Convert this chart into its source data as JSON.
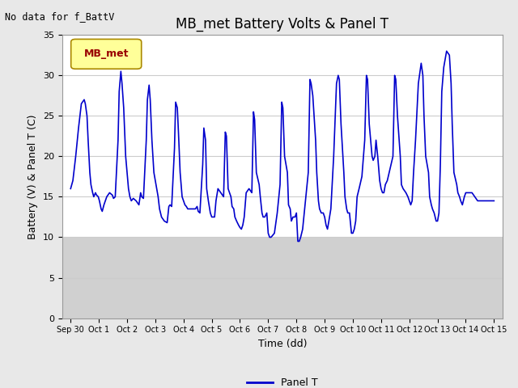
{
  "title": "MB_met Battery Volts & Panel T",
  "no_data_text": "No data for f_BattV",
  "xlabel": "Time (dd)",
  "ylabel": "Battery (V) & Panel T (C)",
  "ylim": [
    0,
    35
  ],
  "yticks": [
    0,
    5,
    10,
    15,
    20,
    25,
    30,
    35
  ],
  "xlim": [
    -0.3,
    15.3
  ],
  "xtick_labels": [
    "Sep 30",
    "Oct 1",
    "Oct 2",
    "Oct 3",
    "Oct 4",
    "Oct 5",
    "Oct 6",
    "Oct 7",
    "Oct 8",
    "Oct 9",
    "Oct 10",
    "Oct 11",
    "Oct 12",
    "Oct 13",
    "Oct 14",
    "Oct 15"
  ],
  "xtick_positions": [
    0,
    1,
    2,
    3,
    4,
    5,
    6,
    7,
    8,
    9,
    10,
    11,
    12,
    13,
    14,
    15
  ],
  "line_color": "#0000cc",
  "line_width": 1.2,
  "legend_label": "Panel T",
  "legend_box_facecolor": "#ffff99",
  "legend_box_edgecolor": "#aa8800",
  "legend_text": "MB_met",
  "legend_text_color": "#990000",
  "fig_facecolor": "#e8e8e8",
  "plot_facecolor": "#ffffff",
  "band_color": "#d0d0d0",
  "title_fontsize": 12,
  "label_fontsize": 9,
  "tick_fontsize": 8,
  "x_data": [
    0.0,
    0.08,
    0.18,
    0.28,
    0.38,
    0.48,
    0.52,
    0.58,
    0.62,
    0.68,
    0.72,
    0.78,
    0.82,
    0.88,
    0.92,
    0.98,
    1.02,
    1.08,
    1.12,
    1.18,
    1.28,
    1.38,
    1.48,
    1.52,
    1.58,
    1.68,
    1.72,
    1.78,
    1.82,
    1.88,
    1.95,
    2.0,
    2.05,
    2.1,
    2.15,
    2.22,
    2.32,
    2.42,
    2.48,
    2.52,
    2.58,
    2.68,
    2.72,
    2.78,
    2.82,
    2.88,
    2.95,
    3.0,
    3.05,
    3.1,
    3.15,
    3.22,
    3.32,
    3.42,
    3.48,
    3.52,
    3.58,
    3.68,
    3.72,
    3.78,
    3.82,
    3.88,
    3.95,
    4.0,
    4.05,
    4.1,
    4.15,
    4.22,
    4.32,
    4.42,
    4.48,
    4.52,
    4.58,
    4.68,
    4.72,
    4.78,
    4.82,
    4.88,
    4.95,
    5.0,
    5.05,
    5.1,
    5.15,
    5.22,
    5.32,
    5.42,
    5.48,
    5.52,
    5.58,
    5.68,
    5.72,
    5.78,
    5.82,
    5.88,
    5.95,
    6.0,
    6.05,
    6.1,
    6.15,
    6.22,
    6.32,
    6.42,
    6.48,
    6.52,
    6.58,
    6.68,
    6.72,
    6.78,
    6.82,
    6.88,
    6.95,
    7.0,
    7.05,
    7.1,
    7.15,
    7.22,
    7.32,
    7.42,
    7.48,
    7.52,
    7.58,
    7.68,
    7.72,
    7.78,
    7.82,
    7.88,
    7.95,
    8.0,
    8.05,
    8.1,
    8.15,
    8.22,
    8.32,
    8.42,
    8.48,
    8.52,
    8.58,
    8.68,
    8.72,
    8.78,
    8.82,
    8.88,
    8.95,
    9.0,
    9.05,
    9.1,
    9.15,
    9.22,
    9.32,
    9.42,
    9.48,
    9.52,
    9.58,
    9.68,
    9.72,
    9.78,
    9.82,
    9.88,
    9.95,
    10.0,
    10.05,
    10.1,
    10.15,
    10.22,
    10.32,
    10.42,
    10.48,
    10.52,
    10.58,
    10.68,
    10.72,
    10.78,
    10.82,
    10.88,
    10.95,
    11.0,
    11.05,
    11.1,
    11.15,
    11.22,
    11.32,
    11.42,
    11.48,
    11.52,
    11.58,
    11.68,
    11.72,
    11.78,
    11.82,
    11.88,
    11.95,
    12.0,
    12.05,
    12.1,
    12.15,
    12.22,
    12.32,
    12.42,
    12.48,
    12.52,
    12.58,
    12.68,
    12.72,
    12.78,
    12.82,
    12.88,
    12.95,
    13.0,
    13.05,
    13.1,
    13.15,
    13.22,
    13.32,
    13.42,
    13.48,
    13.52,
    13.58,
    13.68,
    13.72,
    13.78,
    13.82,
    13.88,
    13.95,
    14.0,
    14.05,
    14.1,
    14.15,
    14.22,
    14.32,
    14.42,
    14.5,
    14.6,
    14.7,
    14.8,
    14.9,
    15.0
  ],
  "y_data": [
    16.0,
    17.0,
    20.0,
    23.5,
    26.5,
    27.0,
    26.5,
    25.0,
    22.0,
    18.0,
    16.5,
    15.5,
    15.0,
    15.5,
    15.2,
    15.0,
    14.5,
    13.5,
    13.2,
    14.0,
    15.0,
    15.5,
    15.2,
    14.8,
    15.0,
    22.0,
    28.0,
    30.5,
    29.0,
    26.0,
    20.0,
    18.0,
    16.0,
    15.0,
    14.5,
    14.8,
    14.5,
    14.0,
    15.5,
    15.0,
    14.8,
    22.0,
    27.0,
    28.8,
    27.0,
    22.0,
    18.0,
    17.0,
    16.0,
    15.0,
    13.5,
    12.5,
    12.0,
    11.8,
    13.8,
    14.0,
    13.8,
    21.0,
    26.7,
    26.0,
    23.0,
    18.0,
    15.0,
    14.5,
    14.0,
    13.8,
    13.5,
    13.5,
    13.5,
    13.5,
    13.8,
    13.2,
    13.0,
    19.0,
    23.5,
    22.0,
    16.0,
    14.5,
    13.0,
    12.5,
    12.5,
    12.5,
    14.5,
    16.0,
    15.5,
    15.0,
    23.0,
    22.5,
    16.0,
    15.0,
    13.8,
    13.5,
    12.5,
    12.0,
    11.5,
    11.2,
    11.0,
    11.5,
    12.5,
    15.5,
    16.0,
    15.5,
    25.5,
    24.5,
    18.0,
    16.5,
    15.0,
    13.0,
    12.5,
    12.5,
    13.0,
    10.5,
    10.0,
    10.0,
    10.2,
    10.5,
    13.0,
    16.5,
    26.7,
    26.0,
    20.0,
    18.0,
    14.0,
    13.5,
    12.0,
    12.5,
    12.5,
    13.0,
    9.5,
    9.5,
    10.0,
    11.0,
    14.5,
    18.0,
    29.5,
    29.0,
    27.5,
    22.0,
    18.0,
    14.5,
    13.5,
    13.0,
    13.0,
    12.5,
    11.5,
    11.0,
    12.0,
    13.5,
    20.0,
    29.0,
    30.0,
    29.5,
    24.0,
    18.0,
    15.0,
    13.5,
    13.0,
    13.0,
    10.5,
    10.5,
    11.0,
    12.0,
    15.0,
    16.0,
    17.5,
    22.0,
    30.0,
    29.5,
    24.0,
    20.0,
    19.5,
    20.0,
    22.0,
    20.0,
    17.0,
    16.0,
    15.5,
    15.5,
    16.5,
    17.0,
    18.5,
    20.0,
    30.0,
    29.5,
    25.0,
    20.0,
    16.5,
    16.0,
    15.8,
    15.5,
    15.0,
    14.5,
    14.0,
    14.5,
    18.0,
    22.0,
    29.0,
    31.5,
    30.0,
    25.0,
    20.0,
    18.0,
    15.0,
    14.0,
    13.5,
    13.0,
    12.0,
    12.0,
    13.0,
    19.0,
    28.0,
    31.0,
    33.0,
    32.5,
    29.0,
    24.0,
    18.0,
    16.5,
    15.5,
    15.0,
    14.5,
    14.0,
    15.0,
    15.5,
    15.5,
    15.5,
    15.5,
    15.5,
    15.0,
    14.5,
    14.5,
    14.5,
    14.5,
    14.5,
    14.5,
    14.5
  ]
}
